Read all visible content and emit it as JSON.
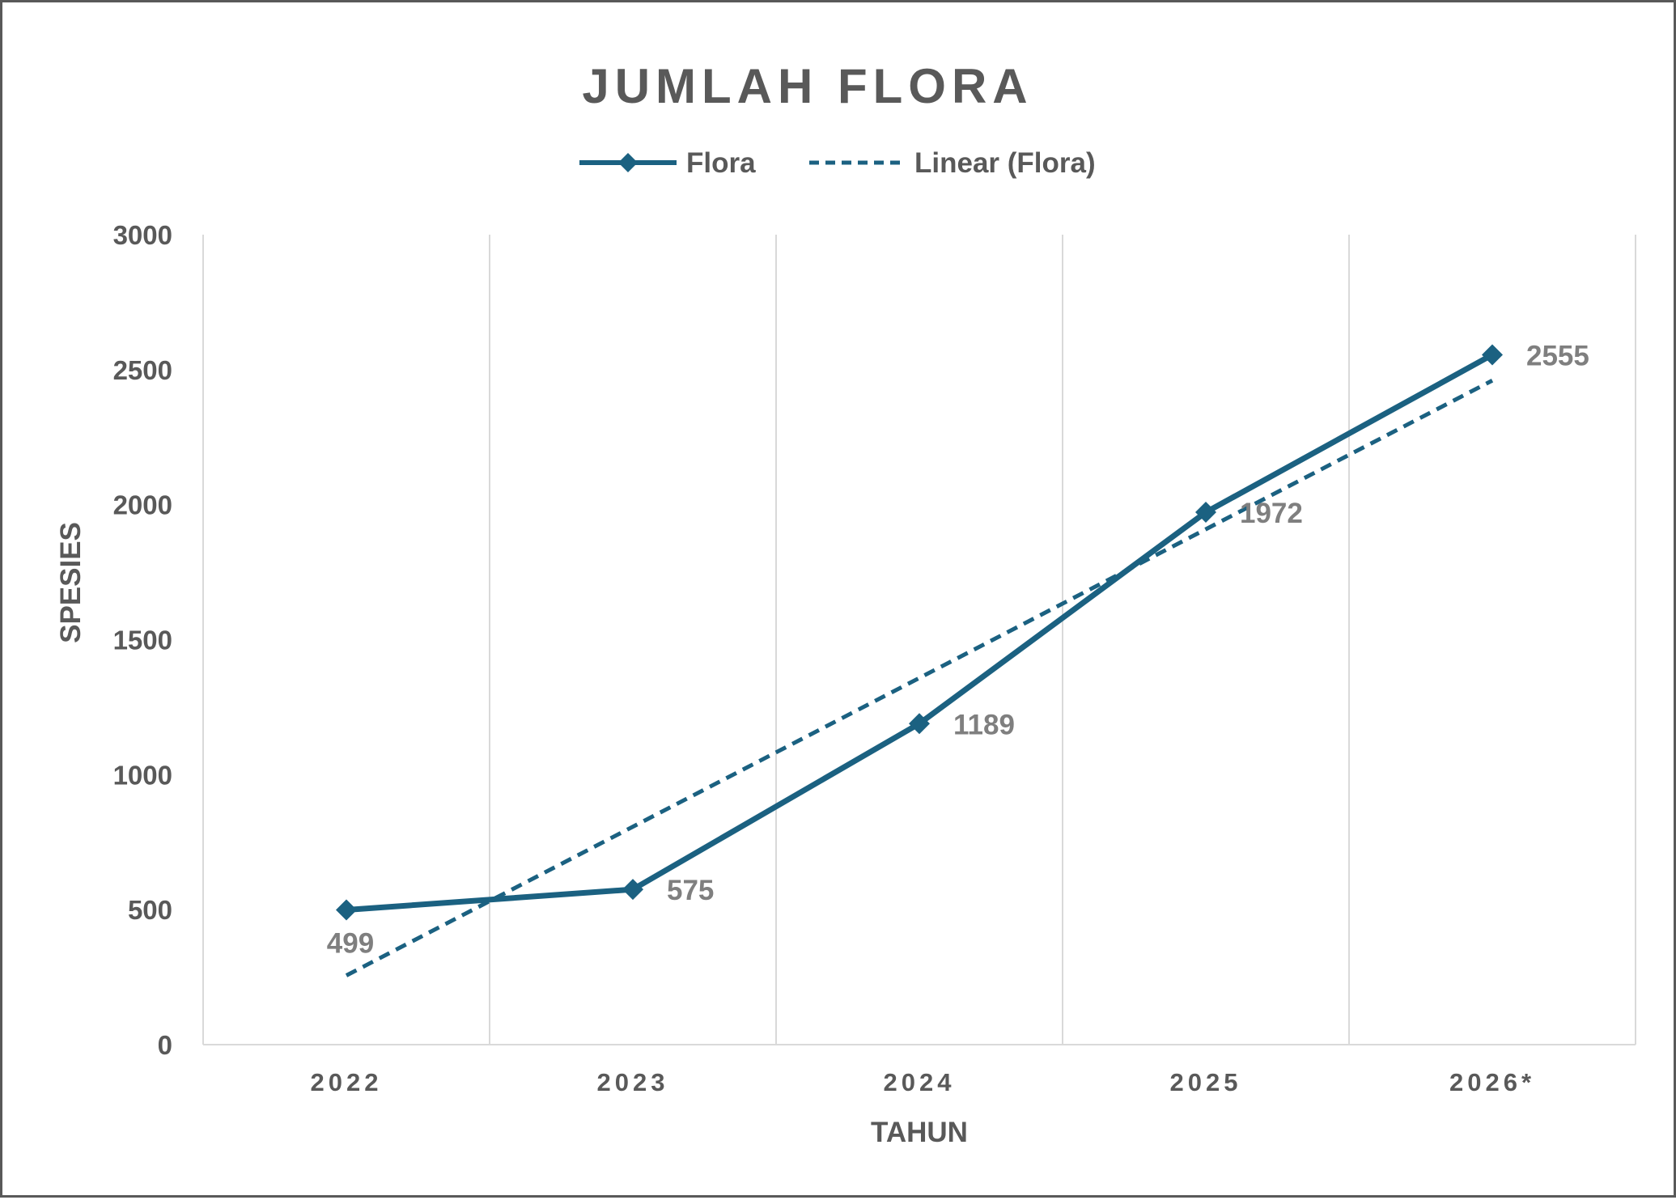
{
  "chart_data": {
    "type": "line",
    "title": "JUMLAH FLORA",
    "xlabel": "TAHUN",
    "ylabel": "SPESIES",
    "categories": [
      "2022",
      "2023",
      "2024",
      "2025",
      "2026*"
    ],
    "yticks": [
      "0",
      "500",
      "1000",
      "1500",
      "2000",
      "2500",
      "3000"
    ],
    "ylim": [
      0,
      3000
    ],
    "grid": "vertical",
    "legend_position": "top-center",
    "series": [
      {
        "name": "Flora",
        "values": [
          499,
          575,
          1189,
          1972,
          2555
        ],
        "labels": [
          "499",
          "575",
          "1189",
          "1972",
          "2555"
        ],
        "color": "#1b6181",
        "marker": "diamond"
      }
    ],
    "trendline": {
      "name": "Linear (Flora)",
      "type": "linear",
      "style": "dashed",
      "color": "#1b6181"
    }
  }
}
